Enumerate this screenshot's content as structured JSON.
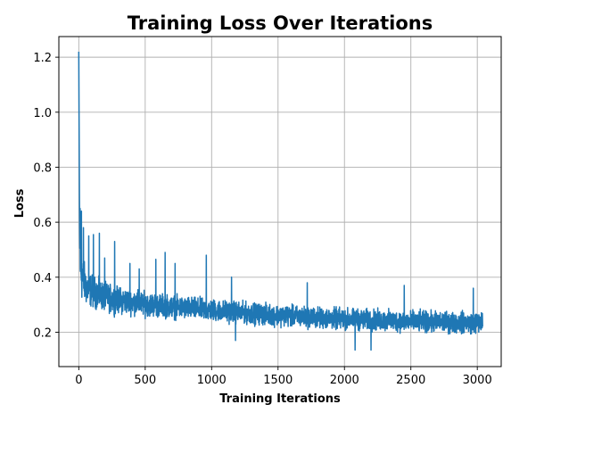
{
  "chart_data": {
    "type": "line",
    "title": "Training Loss Over Iterations",
    "xlabel": "Training Iterations",
    "ylabel": "Loss",
    "xlim": [
      -150,
      3180
    ],
    "ylim": [
      0.075,
      1.275
    ],
    "xticks": [
      0,
      500,
      1000,
      1500,
      2000,
      2500,
      3000
    ],
    "yticks": [
      0.2,
      0.4,
      0.6,
      0.8,
      1.0,
      1.2
    ],
    "ytick_labels": [
      "0.2",
      "0.4",
      "0.6",
      "0.8",
      "1.0",
      "1.2"
    ],
    "grid": true,
    "line_color": "#1f77b4",
    "grid_color": "#b0b0b0",
    "series": [
      {
        "x": [
          0,
          2,
          4,
          6,
          8,
          12,
          18,
          25,
          35,
          50,
          65,
          80,
          100,
          120,
          140,
          160,
          190,
          220,
          250,
          280,
          320,
          360,
          400,
          450,
          500,
          550,
          600,
          650,
          700,
          750,
          800,
          850,
          900,
          950,
          1000,
          1050,
          1100,
          1150,
          1200,
          1250,
          1300,
          1350,
          1400,
          1450,
          1500,
          1550,
          1600,
          1650,
          1700,
          1750,
          1800,
          1850,
          1900,
          1950,
          2000,
          2050,
          2100,
          2150,
          2200,
          2250,
          2300,
          2350,
          2400,
          2450,
          2500,
          2550,
          2600,
          2650,
          2700,
          2750,
          2800,
          2850,
          2900,
          2950,
          3000,
          3040
        ],
        "y": [
          1.22,
          1.0,
          0.8,
          0.6,
          0.5,
          0.45,
          0.42,
          0.4,
          0.39,
          0.37,
          0.36,
          0.355,
          0.35,
          0.345,
          0.34,
          0.335,
          0.33,
          0.325,
          0.32,
          0.318,
          0.315,
          0.312,
          0.31,
          0.305,
          0.302,
          0.3,
          0.297,
          0.295,
          0.292,
          0.29,
          0.288,
          0.286,
          0.284,
          0.282,
          0.28,
          0.278,
          0.276,
          0.274,
          0.272,
          0.27,
          0.268,
          0.266,
          0.265,
          0.263,
          0.262,
          0.26,
          0.258,
          0.257,
          0.255,
          0.254,
          0.252,
          0.251,
          0.25,
          0.249,
          0.248,
          0.247,
          0.246,
          0.245,
          0.244,
          0.243,
          0.242,
          0.241,
          0.24,
          0.24,
          0.239,
          0.238,
          0.238,
          0.237,
          0.237,
          0.236,
          0.236,
          0.235,
          0.235,
          0.234,
          0.234,
          0.234
        ],
        "noise_amplitude": [
          0,
          0,
          0,
          0.08,
          0.1,
          0.12,
          0.12,
          0.1,
          0.09,
          0.08,
          0.075,
          0.07,
          0.068,
          0.066,
          0.064,
          0.062,
          0.06,
          0.058,
          0.057,
          0.056,
          0.055,
          0.054,
          0.053,
          0.052,
          0.051,
          0.05,
          0.05,
          0.049,
          0.049,
          0.048,
          0.048,
          0.048,
          0.047,
          0.047,
          0.047,
          0.046,
          0.046,
          0.046,
          0.046,
          0.045,
          0.045,
          0.045,
          0.045,
          0.045,
          0.045,
          0.045,
          0.045,
          0.045,
          0.045,
          0.045,
          0.045,
          0.045,
          0.045,
          0.045,
          0.045,
          0.045,
          0.045,
          0.045,
          0.045,
          0.045,
          0.045,
          0.045,
          0.045,
          0.045,
          0.045,
          0.045,
          0.045,
          0.045,
          0.045,
          0.045,
          0.045,
          0.045,
          0.045,
          0.045,
          0.045,
          0.045
        ],
        "spikes": [
          {
            "x": 10,
            "y": 0.65
          },
          {
            "x": 20,
            "y": 0.64
          },
          {
            "x": 35,
            "y": 0.58
          },
          {
            "x": 75,
            "y": 0.55
          },
          {
            "x": 110,
            "y": 0.555
          },
          {
            "x": 155,
            "y": 0.56
          },
          {
            "x": 195,
            "y": 0.47
          },
          {
            "x": 270,
            "y": 0.53
          },
          {
            "x": 385,
            "y": 0.45
          },
          {
            "x": 455,
            "y": 0.43
          },
          {
            "x": 580,
            "y": 0.465
          },
          {
            "x": 650,
            "y": 0.49
          },
          {
            "x": 725,
            "y": 0.45
          },
          {
            "x": 960,
            "y": 0.48
          },
          {
            "x": 1150,
            "y": 0.4
          },
          {
            "x": 1720,
            "y": 0.38
          },
          {
            "x": 2450,
            "y": 0.37
          },
          {
            "x": 2970,
            "y": 0.36
          },
          {
            "x": 2080,
            "y": 0.135
          },
          {
            "x": 2200,
            "y": 0.135
          },
          {
            "x": 1180,
            "y": 0.17
          }
        ]
      }
    ]
  }
}
